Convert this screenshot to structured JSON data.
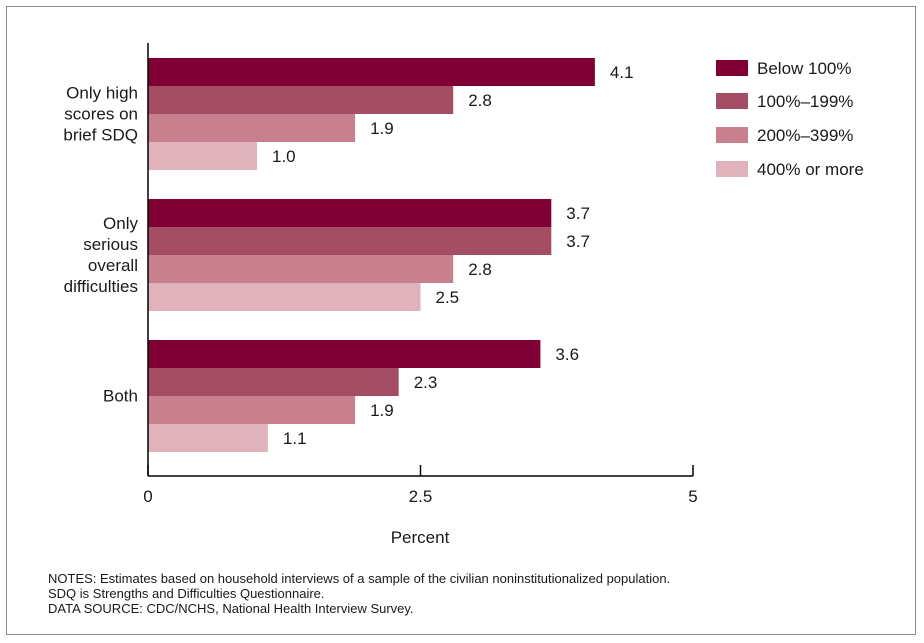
{
  "chart_data": {
    "type": "bar",
    "orientation": "horizontal",
    "categories": [
      [
        "Only high",
        "scores on",
        "brief SDQ"
      ],
      [
        "Only",
        "serious",
        "overall",
        "difficulties"
      ],
      [
        "Both"
      ]
    ],
    "series": [
      {
        "name": "Below 100%",
        "values": [
          4.1,
          3.7,
          3.6
        ],
        "color": "#800033"
      },
      {
        "name": "100%–199%",
        "values": [
          2.8,
          3.7,
          2.3
        ],
        "color": "#a64d66"
      },
      {
        "name": "200%–399%",
        "values": [
          1.9,
          2.8,
          1.9
        ],
        "color": "#c8808f"
      },
      {
        "name": "400% or more",
        "values": [
          1.0,
          2.5,
          1.1
        ],
        "color": "#e0b3bc"
      }
    ],
    "value_labels": [
      [
        "4.1",
        "2.8",
        "1.9",
        "1.0"
      ],
      [
        "3.7",
        "3.7",
        "2.8",
        "2.5"
      ],
      [
        "3.6",
        "2.3",
        "1.9",
        "1.1"
      ]
    ],
    "xlim": [
      0,
      5
    ],
    "xticks": [
      "0",
      "2.5",
      "5"
    ],
    "xlabel": "Percent",
    "ylabel": "",
    "title": "",
    "grid": false,
    "legend_position": "top-right"
  },
  "notes": {
    "line1": "NOTES: Estimates based on household interviews of a sample of the civilian noninstitutionalized population.",
    "line2": "SDQ is Strengths and Difficulties Questionnaire.",
    "line3": "DATA SOURCE: CDC/NCHS, National Health Interview Survey."
  }
}
